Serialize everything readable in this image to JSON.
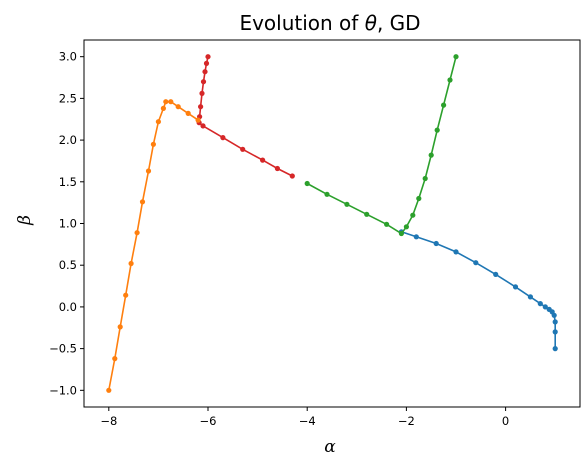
{
  "chart_data": {
    "type": "line",
    "title_main": "Evolution of ",
    "title_symbol": "θ",
    "title_suffix": ", GD",
    "xlabel": "α",
    "ylabel": "β",
    "xlim": [
      -8.5,
      1.5
    ],
    "ylim": [
      -1.2,
      3.2
    ],
    "xticks": [
      -8,
      -6,
      -4,
      -2,
      0
    ],
    "xtick_labels": [
      "−8",
      "−6",
      "−4",
      "−2",
      "0"
    ],
    "yticks": [
      -1.0,
      -0.5,
      0.0,
      0.5,
      1.0,
      1.5,
      2.0,
      2.5,
      3.0
    ],
    "ytick_labels": [
      "−1.0",
      "−0.5",
      "0.0",
      "0.5",
      "1.0",
      "1.5",
      "2.0",
      "2.5",
      "3.0"
    ],
    "grid": false,
    "legend": "none",
    "series": [
      {
        "color": "#1f77b4",
        "x": [
          1.0,
          1.0,
          1.0,
          0.98,
          0.94,
          0.88,
          0.8,
          0.7,
          0.5,
          0.2,
          -0.2,
          -0.6,
          -1.0,
          -1.4,
          -1.8,
          -2.1
        ],
        "y": [
          -0.5,
          -0.3,
          -0.18,
          -0.1,
          -0.06,
          -0.03,
          0.0,
          0.04,
          0.12,
          0.24,
          0.39,
          0.53,
          0.66,
          0.76,
          0.84,
          0.9
        ]
      },
      {
        "color": "#2ca02c",
        "x": [
          -1.0,
          -1.12,
          -1.25,
          -1.38,
          -1.5,
          -1.62,
          -1.75,
          -1.87,
          -2.0,
          -2.1,
          -2.4,
          -2.8,
          -3.2,
          -3.6,
          -4.0
        ],
        "y": [
          3.0,
          2.72,
          2.42,
          2.12,
          1.82,
          1.54,
          1.3,
          1.1,
          0.96,
          0.88,
          0.99,
          1.11,
          1.23,
          1.35,
          1.48
        ]
      },
      {
        "color": "#d62728",
        "x": [
          -6.0,
          -6.03,
          -6.06,
          -6.09,
          -6.12,
          -6.15,
          -6.17,
          -6.18,
          -6.1,
          -5.7,
          -5.3,
          -4.9,
          -4.6,
          -4.3
        ],
        "y": [
          3.0,
          2.92,
          2.82,
          2.7,
          2.56,
          2.4,
          2.28,
          2.21,
          2.17,
          2.03,
          1.89,
          1.76,
          1.66,
          1.57
        ]
      },
      {
        "color": "#ff7f0e",
        "x": [
          -8.0,
          -7.88,
          -7.77,
          -7.66,
          -7.55,
          -7.43,
          -7.32,
          -7.2,
          -7.1,
          -7.0,
          -6.9,
          -6.85,
          -6.75,
          -6.6,
          -6.4,
          -6.2
        ],
        "y": [
          -1.0,
          -0.62,
          -0.24,
          0.14,
          0.52,
          0.89,
          1.26,
          1.63,
          1.95,
          2.22,
          2.38,
          2.46,
          2.46,
          2.4,
          2.32,
          2.24
        ]
      }
    ]
  }
}
